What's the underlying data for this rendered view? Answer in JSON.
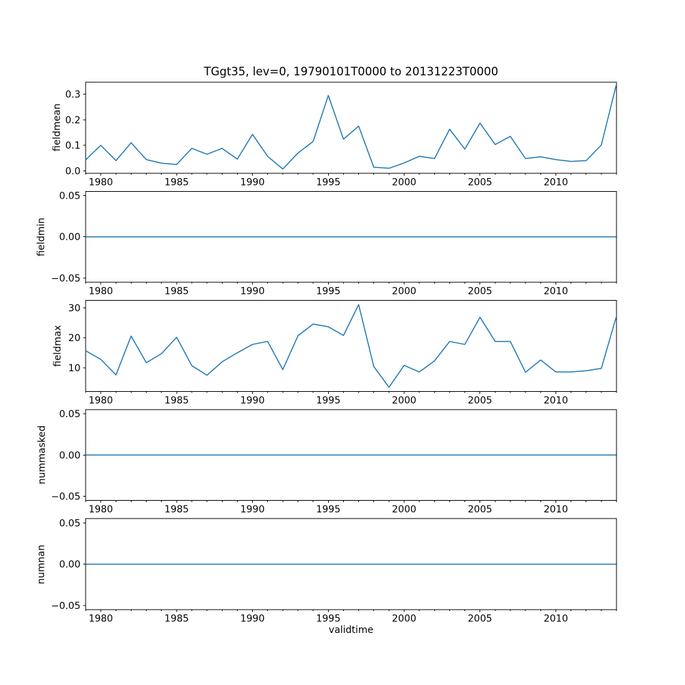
{
  "figure": {
    "title": "TGgt35, lev=0, 19790101T0000 to 20131223T0000",
    "xlabel": "validtime",
    "line_color": "#1f77b4",
    "background_color": "#ffffff",
    "text_color": "#000000",
    "spine_color": "#000000",
    "grid": "off",
    "legend": "none",
    "num_subplots": 5
  },
  "x_axis": {
    "label": "validtime",
    "xlim": [
      1979,
      2014
    ],
    "major_ticks": [
      1980,
      1985,
      1990,
      1995,
      2000,
      2005,
      2010
    ],
    "major_tick_labels": [
      "1980",
      "1985",
      "1990",
      "1995",
      "2000",
      "2005",
      "2010"
    ],
    "minor_tick_interval_years": 1
  },
  "chart_data": [
    {
      "type": "line",
      "ylabel": "fieldmean",
      "ylim": [
        -0.009,
        0.347
      ],
      "yticks": [
        0.0,
        0.1,
        0.2,
        0.3
      ],
      "ytick_labels": [
        "0.0",
        "0.1",
        "0.2",
        "0.3"
      ],
      "x": [
        1979,
        1980,
        1981,
        1982,
        1983,
        1984,
        1985,
        1986,
        1987,
        1988,
        1989,
        1990,
        1991,
        1992,
        1993,
        1994,
        1995,
        1996,
        1997,
        1998,
        1999,
        2000,
        2001,
        2002,
        2003,
        2004,
        2005,
        2006,
        2007,
        2008,
        2009,
        2010,
        2011,
        2012,
        2013,
        2013.978
      ],
      "values": [
        0.043,
        0.1,
        0.04,
        0.11,
        0.044,
        0.03,
        0.025,
        0.088,
        0.065,
        0.088,
        0.046,
        0.143,
        0.057,
        0.007,
        0.07,
        0.115,
        0.295,
        0.124,
        0.175,
        0.014,
        0.01,
        0.031,
        0.057,
        0.048,
        0.163,
        0.085,
        0.187,
        0.103,
        0.135,
        0.048,
        0.055,
        0.044,
        0.037,
        0.04,
        0.101,
        0.335
      ]
    },
    {
      "type": "line",
      "ylabel": "fieldmin",
      "ylim": [
        -0.055,
        0.055
      ],
      "yticks": [
        -0.05,
        0.0,
        0.05
      ],
      "ytick_labels": [
        "−0.05",
        "0.00",
        "0.05"
      ],
      "x": [
        1979,
        1980,
        1981,
        1982,
        1983,
        1984,
        1985,
        1986,
        1987,
        1988,
        1989,
        1990,
        1991,
        1992,
        1993,
        1994,
        1995,
        1996,
        1997,
        1998,
        1999,
        2000,
        2001,
        2002,
        2003,
        2004,
        2005,
        2006,
        2007,
        2008,
        2009,
        2010,
        2011,
        2012,
        2013,
        2013.978
      ],
      "values": [
        0,
        0,
        0,
        0,
        0,
        0,
        0,
        0,
        0,
        0,
        0,
        0,
        0,
        0,
        0,
        0,
        0,
        0,
        0,
        0,
        0,
        0,
        0,
        0,
        0,
        0,
        0,
        0,
        0,
        0,
        0,
        0,
        0,
        0,
        0,
        0
      ]
    },
    {
      "type": "line",
      "ylabel": "fieldmax",
      "ylim": [
        2.1,
        32.5
      ],
      "yticks": [
        10,
        20,
        30
      ],
      "ytick_labels": [
        "10",
        "20",
        "30"
      ],
      "x": [
        1979,
        1980,
        1981,
        1982,
        1983,
        1984,
        1985,
        1986,
        1987,
        1988,
        1989,
        1990,
        1991,
        1992,
        1993,
        1994,
        1995,
        1996,
        1997,
        1998,
        1999,
        2000,
        2001,
        2002,
        2003,
        2004,
        2005,
        2006,
        2007,
        2008,
        2009,
        2010,
        2011,
        2012,
        2013,
        2013.978
      ],
      "values": [
        15.7,
        12.8,
        7.6,
        20.6,
        11.7,
        14.7,
        20.2,
        10.7,
        7.5,
        12.0,
        15.0,
        17.8,
        18.8,
        9.4,
        20.7,
        24.6,
        23.7,
        20.8,
        31.1,
        10.4,
        3.5,
        10.8,
        8.6,
        12.3,
        18.8,
        17.8,
        26.9,
        18.8,
        18.8,
        8.5,
        12.6,
        8.6,
        8.6,
        9.0,
        9.8,
        26.9
      ]
    },
    {
      "type": "line",
      "ylabel": "nummasked",
      "ylim": [
        -0.055,
        0.055
      ],
      "yticks": [
        -0.05,
        0.0,
        0.05
      ],
      "ytick_labels": [
        "−0.05",
        "0.00",
        "0.05"
      ],
      "x": [
        1979,
        1980,
        1981,
        1982,
        1983,
        1984,
        1985,
        1986,
        1987,
        1988,
        1989,
        1990,
        1991,
        1992,
        1993,
        1994,
        1995,
        1996,
        1997,
        1998,
        1999,
        2000,
        2001,
        2002,
        2003,
        2004,
        2005,
        2006,
        2007,
        2008,
        2009,
        2010,
        2011,
        2012,
        2013,
        2013.978
      ],
      "values": [
        0,
        0,
        0,
        0,
        0,
        0,
        0,
        0,
        0,
        0,
        0,
        0,
        0,
        0,
        0,
        0,
        0,
        0,
        0,
        0,
        0,
        0,
        0,
        0,
        0,
        0,
        0,
        0,
        0,
        0,
        0,
        0,
        0,
        0,
        0,
        0
      ]
    },
    {
      "type": "line",
      "ylabel": "numnan",
      "ylim": [
        -0.055,
        0.055
      ],
      "yticks": [
        -0.05,
        0.0,
        0.05
      ],
      "ytick_labels": [
        "−0.05",
        "0.00",
        "0.05"
      ],
      "x": [
        1979,
        1980,
        1981,
        1982,
        1983,
        1984,
        1985,
        1986,
        1987,
        1988,
        1989,
        1990,
        1991,
        1992,
        1993,
        1994,
        1995,
        1996,
        1997,
        1998,
        1999,
        2000,
        2001,
        2002,
        2003,
        2004,
        2005,
        2006,
        2007,
        2008,
        2009,
        2010,
        2011,
        2012,
        2013,
        2013.978
      ],
      "values": [
        0,
        0,
        0,
        0,
        0,
        0,
        0,
        0,
        0,
        0,
        0,
        0,
        0,
        0,
        0,
        0,
        0,
        0,
        0,
        0,
        0,
        0,
        0,
        0,
        0,
        0,
        0,
        0,
        0,
        0,
        0,
        0,
        0,
        0,
        0,
        0
      ]
    }
  ]
}
